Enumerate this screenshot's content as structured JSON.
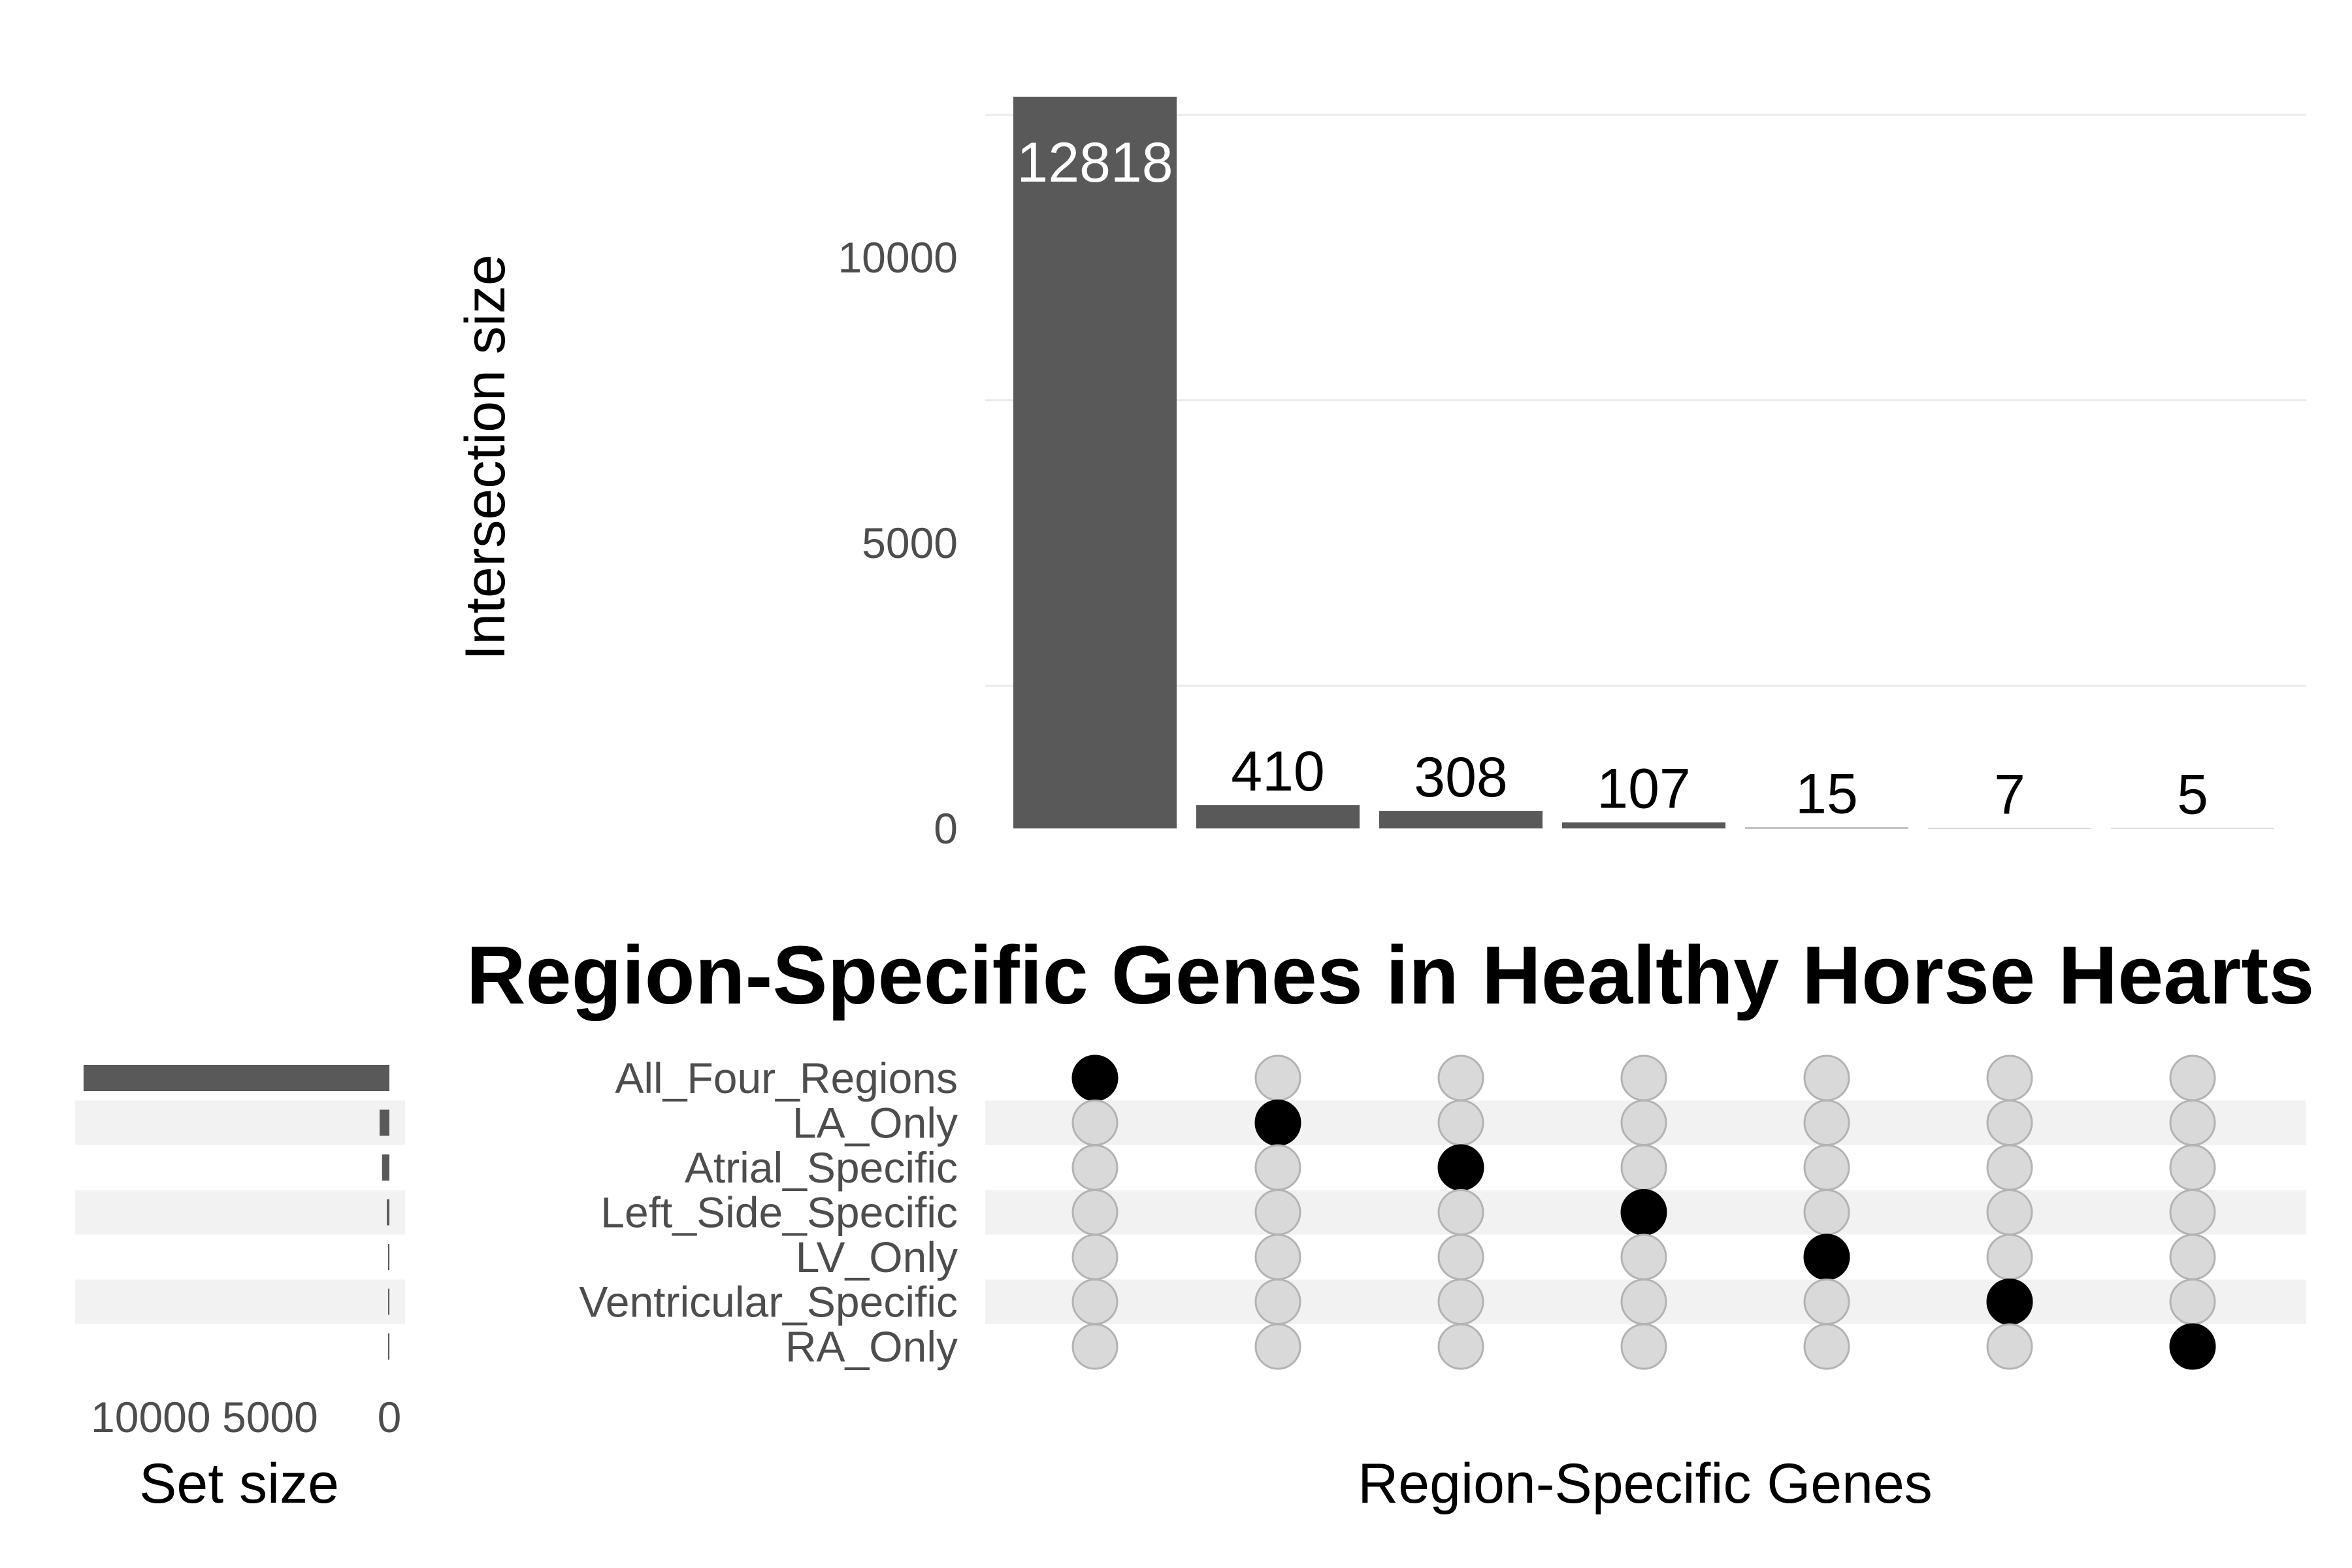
{
  "chart_data": {
    "type": "upset",
    "title": "Region-Specific Genes in Healthy Horse Hearts",
    "intersection_axis": {
      "label": "Intersection size",
      "ticks": [
        0,
        5000,
        10000
      ],
      "ylim": [
        0,
        12818
      ]
    },
    "set_size_axis": {
      "label": "Set size",
      "ticks": [
        "10000",
        "5000",
        "0"
      ]
    },
    "matrix_xlabel": "Region-Specific Genes",
    "sets": [
      {
        "name": "All_Four_Regions",
        "size": 12818
      },
      {
        "name": "LA_Only",
        "size": 410
      },
      {
        "name": "Atrial_Specific",
        "size": 308
      },
      {
        "name": "Left_Side_Specific",
        "size": 107
      },
      {
        "name": "LV_Only",
        "size": 15
      },
      {
        "name": "Ventricular_Specific",
        "size": 7
      },
      {
        "name": "RA_Only",
        "size": 5
      }
    ],
    "intersections": [
      {
        "sets": [
          "All_Four_Regions"
        ],
        "size": 12818
      },
      {
        "sets": [
          "LA_Only"
        ],
        "size": 410
      },
      {
        "sets": [
          "Atrial_Specific"
        ],
        "size": 308
      },
      {
        "sets": [
          "Left_Side_Specific"
        ],
        "size": 107
      },
      {
        "sets": [
          "LV_Only"
        ],
        "size": 15
      },
      {
        "sets": [
          "Ventricular_Specific"
        ],
        "size": 7
      },
      {
        "sets": [
          "RA_Only"
        ],
        "size": 5
      }
    ],
    "colors": {
      "bar": "#595959",
      "dot_active": "#000000",
      "dot_inactive": "#d9d9d9",
      "dot_inactive_stroke": "#b3b3b3",
      "grid": "#ebebeb",
      "stripe": "#f2f2f2"
    }
  }
}
